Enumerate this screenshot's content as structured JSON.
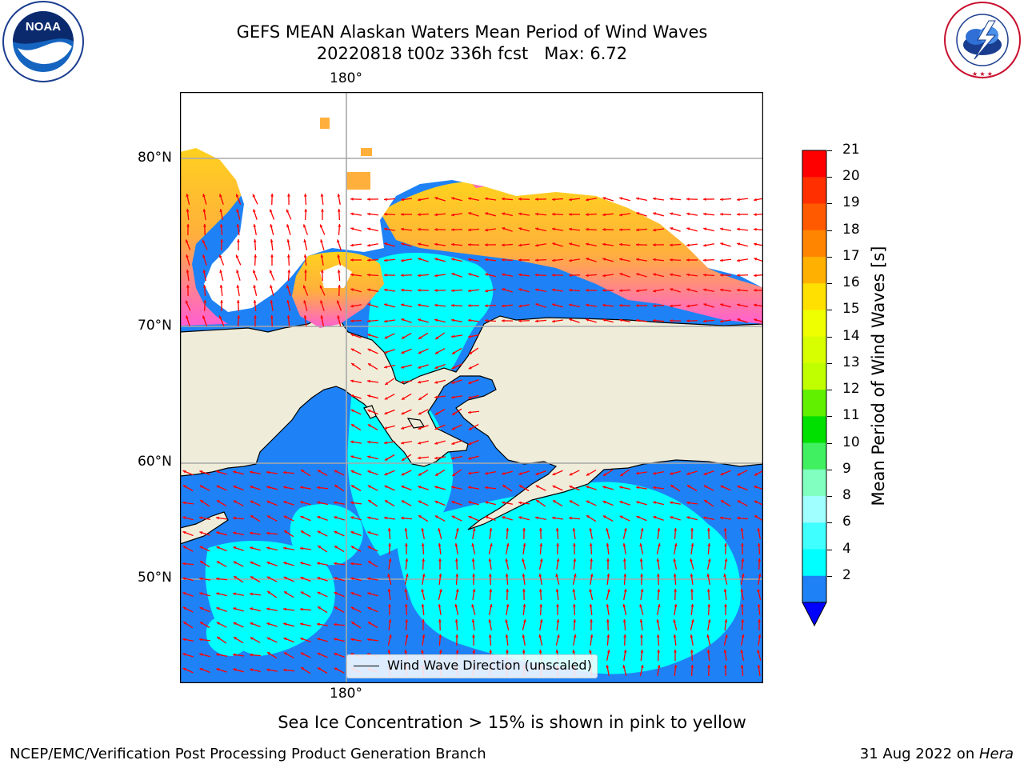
{
  "header": {
    "title_line1": "GEFS MEAN Alaskan Waters Mean Period of Wind Waves",
    "title_line2": "20220818 t00z 336h fcst   Max: 6.72"
  },
  "logos": {
    "noaa": {
      "text": "NOAA",
      "ring_text": "NATIONAL OCEANIC AND ATMOSPHERIC ADMINISTRATION · U.S. DEPARTMENT OF COMMERCE"
    },
    "nws": {
      "ring_text": "NATIONAL WEATHER SERVICE"
    }
  },
  "map": {
    "lon_label_top": "180°",
    "lon_label_bottom": "180°",
    "lat_labels": [
      "80°N",
      "70°N",
      "60°N",
      "50°N"
    ],
    "legend_label": "Wind Wave Direction (unscaled)",
    "colors": {
      "land": "#efedda",
      "ice": "#ffffff",
      "wave_2_4": "#1e82f6",
      "wave_4_6": "#00ffff",
      "arrow": "#ff0000"
    }
  },
  "colorbar": {
    "label": "Mean Period of Wind Waves [s]",
    "ticks": [
      "21",
      "20",
      "19",
      "18",
      "17",
      "16",
      "15",
      "14",
      "13",
      "12",
      "11",
      "10",
      "9",
      "8",
      "6",
      "4",
      "2"
    ],
    "colors": [
      "#ff0000",
      "#ff2f00",
      "#ff5a00",
      "#ff8500",
      "#ffb000",
      "#ffe000",
      "#f0ff00",
      "#d8ff00",
      "#c0ff00",
      "#60f000",
      "#00e000",
      "#40f060",
      "#80ffc0",
      "#a0ffff",
      "#40ffff",
      "#00ffff",
      "#1e82f6"
    ],
    "under_color": "#0000ff"
  },
  "subtitle": "Sea Ice Concentration > 15% is shown in pink to yellow",
  "footer": {
    "left": "NCEP/EMC/Verification Post Processing Product Generation Branch",
    "right_date": "31 Aug 2022 on ",
    "right_machine": "Hera"
  }
}
